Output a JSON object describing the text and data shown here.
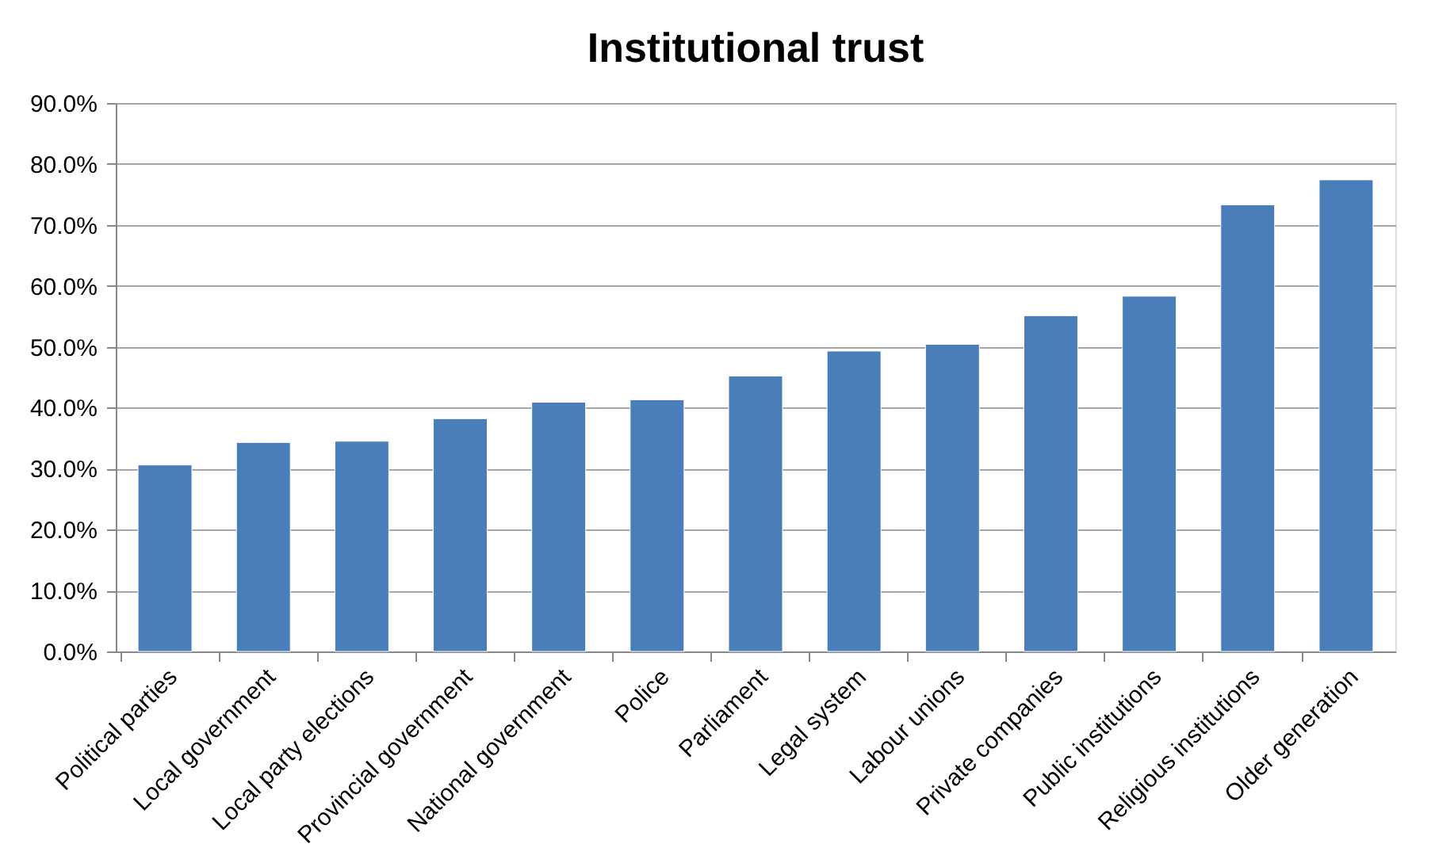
{
  "chart_data": {
    "type": "bar",
    "title": "Institutional trust",
    "categories": [
      "Political parties",
      "Local government",
      "Local party elections",
      "Provincial government",
      "National government",
      "Police",
      "Parliament",
      "Legal system",
      "Labour unions",
      "Private companies",
      "Public institutions",
      "Religious institutions",
      "Older generation"
    ],
    "values": [
      30.6,
      34.3,
      34.5,
      38.2,
      40.9,
      41.3,
      45.2,
      49.3,
      50.4,
      55.1,
      58.3,
      73.3,
      77.4
    ],
    "color": "#4a7ebb",
    "ylim": [
      0,
      90
    ],
    "yticks": [
      {
        "value": 0,
        "label": "0.0%"
      },
      {
        "value": 10,
        "label": "10.0%"
      },
      {
        "value": 20,
        "label": "20.0%"
      },
      {
        "value": 30,
        "label": "30.0%"
      },
      {
        "value": 40,
        "label": "40.0%"
      },
      {
        "value": 50,
        "label": "50.0%"
      },
      {
        "value": 60,
        "label": "60.0%"
      },
      {
        "value": 70,
        "label": "70.0%"
      },
      {
        "value": 80,
        "label": "80.0%"
      },
      {
        "value": 90,
        "label": "90.0%"
      }
    ],
    "grid": "y"
  }
}
